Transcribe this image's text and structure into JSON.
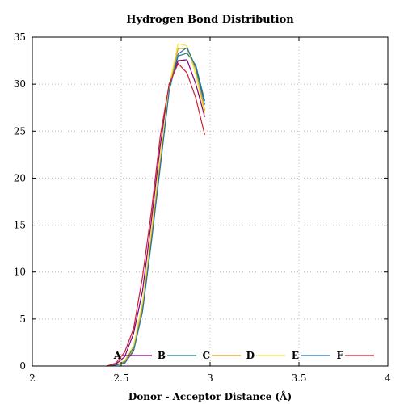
{
  "chart_data": {
    "type": "line",
    "title": "Hydrogen Bond Distribution",
    "xlabel": "Donor - Acceptor Distance (Å)",
    "ylabel": "",
    "xlim": [
      2,
      4
    ],
    "ylim": [
      0,
      35
    ],
    "xticks": [
      2,
      2.5,
      3,
      3.5,
      4
    ],
    "xtick_labels": [
      "2",
      "2.5",
      "3",
      "3.5",
      "4"
    ],
    "yticks": [
      0,
      5,
      10,
      15,
      20,
      25,
      30,
      35
    ],
    "ytick_labels": [
      "0",
      "5",
      "10",
      "15",
      "20",
      "25",
      "30",
      "35"
    ],
    "grid": true,
    "legend_position": "bottom-center",
    "x": [
      2.42,
      2.47,
      2.52,
      2.57,
      2.62,
      2.67,
      2.72,
      2.77,
      2.82,
      2.87,
      2.92,
      2.97
    ],
    "series": [
      {
        "name": "A",
        "color": "#800080",
        "values": [
          0.0,
          0.2,
          1.0,
          3.5,
          8.0,
          15.5,
          23.5,
          30.0,
          32.5,
          32.6,
          30.0,
          26.5
        ]
      },
      {
        "name": "B",
        "color": "#1a7a8a",
        "values": [
          0.0,
          0.1,
          0.5,
          2.0,
          6.5,
          14.0,
          22.0,
          29.5,
          33.0,
          33.3,
          32.0,
          28.2
        ]
      },
      {
        "name": "C",
        "color": "#d4a017",
        "values": [
          0.0,
          0.1,
          0.4,
          1.8,
          6.2,
          13.8,
          21.8,
          29.6,
          33.8,
          33.8,
          31.5,
          27.2
        ]
      },
      {
        "name": "D",
        "color": "#f0e442",
        "values": [
          0.0,
          0.1,
          0.6,
          2.2,
          6.8,
          14.5,
          22.5,
          29.8,
          34.3,
          34.1,
          31.0,
          26.8
        ]
      },
      {
        "name": "E",
        "color": "#1f6fb4",
        "values": [
          0.0,
          0.1,
          0.3,
          1.6,
          5.8,
          13.2,
          21.2,
          29.3,
          33.2,
          33.9,
          31.8,
          27.8
        ]
      },
      {
        "name": "F",
        "color": "#cc1f2f",
        "values": [
          0.0,
          0.3,
          1.5,
          4.0,
          9.5,
          16.5,
          24.5,
          30.0,
          32.2,
          31.2,
          28.5,
          24.6
        ]
      }
    ]
  }
}
